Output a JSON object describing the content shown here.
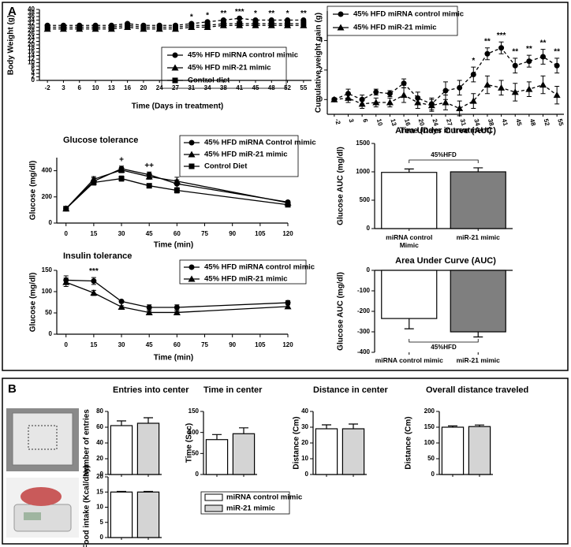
{
  "panel_labels": [
    "A",
    "B"
  ],
  "legend_b": [
    {
      "name": "miRNA control mimic",
      "color": "#ffffff"
    },
    {
      "name": "miR-21 mimic",
      "color": "#d4d4d4"
    }
  ],
  "chart_data": [
    {
      "type": "line",
      "ylabel": "Body Weight (g)",
      "xlabel": "Time (Days in treatment)",
      "line_style": "dashed",
      "categories": [
        "-2",
        "3",
        "6",
        "10",
        "13",
        "16",
        "20",
        "24",
        "27",
        "31",
        "34",
        "38",
        "41",
        "45",
        "48",
        "52",
        "55"
      ],
      "ylim": [
        0,
        40
      ],
      "yticks": [
        0,
        2,
        4,
        6,
        8,
        10,
        12,
        14,
        16,
        18,
        20,
        22,
        24,
        26,
        28,
        30,
        32,
        34,
        36,
        38,
        40
      ],
      "series": [
        {
          "name": "45% HFD miRNA control mimic",
          "color": "#000000",
          "marker": "circle",
          "values": [
            31,
            31,
            31,
            31,
            31,
            32,
            31,
            31,
            31,
            32,
            33,
            34,
            35,
            34,
            34,
            34,
            34
          ]
        },
        {
          "name": "45% HFD miR-21 mimic",
          "color": "#000000",
          "marker": "triangle",
          "values": [
            29,
            29,
            29,
            29,
            29,
            30,
            29,
            29,
            29,
            30,
            30,
            31,
            31,
            31,
            31,
            31,
            31
          ]
        },
        {
          "name": "Control diet",
          "color": "#000000",
          "marker": "square",
          "values": [
            30,
            30,
            30,
            30,
            30,
            31,
            30,
            30,
            30,
            31,
            31,
            32,
            32,
            32,
            32,
            32,
            32
          ]
        }
      ],
      "annotations": [
        null,
        null,
        null,
        null,
        null,
        null,
        null,
        null,
        null,
        "*",
        "*",
        "**",
        "***",
        "*",
        "**",
        "*",
        "**"
      ]
    },
    {
      "type": "line",
      "ylabel": "Cumulative weight gain (g)",
      "xlabel": "Time (Days in treatment)",
      "line_style": "dashed",
      "categories": [
        "-2",
        "3",
        "6",
        "10",
        "13",
        "16",
        "20",
        "24",
        "27",
        "31",
        "34",
        "38",
        "41",
        "45",
        "48",
        "52",
        "55"
      ],
      "ylim": [
        -1,
        6
      ],
      "yticks": [
        0,
        2,
        4
      ],
      "series": [
        {
          "name": "45% HFD miRNA control mimic",
          "color": "#000000",
          "marker": "circle",
          "values": [
            0,
            0.4,
            0,
            0.5,
            0.4,
            1.1,
            0.1,
            -0.3,
            0.6,
            0.8,
            1.7,
            3.1,
            3.5,
            2.3,
            2.6,
            2.9,
            2.3
          ],
          "errors": [
            0.1,
            0.3,
            0.3,
            0.2,
            0.2,
            0.3,
            0.4,
            0.4,
            0.6,
            0.5,
            0.5,
            0.4,
            0.4,
            0.5,
            0.4,
            0.5,
            0.5
          ]
        },
        {
          "name": "45% HFD miR-21 mimic",
          "color": "#000000",
          "marker": "triangle",
          "values": [
            0,
            0.1,
            -0.3,
            -0.2,
            -0.2,
            0.3,
            -0.2,
            -0.4,
            -0.2,
            -0.6,
            -0.1,
            1.0,
            0.8,
            0.5,
            0.7,
            1.0,
            0.3
          ],
          "errors": [
            0.1,
            0.3,
            0.3,
            0.3,
            0.3,
            0.5,
            0.4,
            0.4,
            0.5,
            0.5,
            0.5,
            0.6,
            0.5,
            0.6,
            0.5,
            0.6,
            0.6
          ]
        }
      ],
      "annotations": [
        null,
        null,
        null,
        null,
        null,
        null,
        null,
        null,
        null,
        null,
        "*",
        "**",
        "***",
        "**",
        "**",
        "**",
        "**"
      ]
    },
    {
      "type": "line",
      "title": "Glucose tolerance",
      "ylabel": "Glucose (mg/dl)",
      "xlabel": "Time (min)",
      "line_style": "solid",
      "x": [
        0,
        15,
        30,
        45,
        60,
        120
      ],
      "xlim": [
        -5,
        120
      ],
      "xticks": [
        0,
        15,
        30,
        45,
        60,
        75,
        90,
        105,
        120
      ],
      "ylim": [
        0,
        500
      ],
      "yticks": [
        0,
        200,
        400
      ],
      "series": [
        {
          "name": "45% HFD miRNA Control mimic",
          "color": "#000000",
          "marker": "circle",
          "values": [
            110,
            320,
            415,
            370,
            300,
            160
          ],
          "errors": [
            10,
            25,
            20,
            20,
            30,
            10
          ]
        },
        {
          "name": "45% HFD miR-21 mimic",
          "color": "#000000",
          "marker": "triangle",
          "values": [
            110,
            335,
            405,
            355,
            320,
            155
          ],
          "errors": [
            10,
            20,
            20,
            20,
            30,
            10
          ]
        },
        {
          "name": "Control Diet",
          "color": "#000000",
          "marker": "square",
          "values": [
            110,
            310,
            340,
            285,
            250,
            140
          ],
          "errors": [
            10,
            20,
            20,
            15,
            20,
            10
          ]
        }
      ],
      "annotations": [
        null,
        null,
        "+",
        "++",
        null,
        null
      ]
    },
    {
      "type": "bar",
      "title": "Area Under Curve (AUC)",
      "ylabel": "Glucose AUC (mg/dl)",
      "categories": [
        "miRNA control\nMimic",
        "miR-21 mimic"
      ],
      "values": [
        990,
        1000
      ],
      "errors": [
        60,
        70
      ],
      "colors": [
        "#ffffff",
        "#7f7f7f"
      ],
      "ylim": [
        0,
        1500
      ],
      "yticks": [
        0,
        500,
        1000,
        1500
      ],
      "bracket_label": "45%HFD"
    },
    {
      "type": "line",
      "title": "Insulin tolerance",
      "ylabel": "Glucose (mg/dl)",
      "xlabel": "Time (min)",
      "line_style": "solid",
      "x": [
        0,
        15,
        30,
        45,
        60,
        120
      ],
      "xlim": [
        -5,
        120
      ],
      "xticks": [
        0,
        15,
        30,
        45,
        60,
        75,
        90,
        105,
        120
      ],
      "ylim": [
        0,
        150
      ],
      "yticks": [
        0,
        50,
        100,
        150
      ],
      "series": [
        {
          "name": "45% HFD miRNA control mimic",
          "color": "#000000",
          "marker": "circle",
          "values": [
            127,
            125,
            77,
            63,
            63,
            74
          ],
          "errors": [
            10,
            8,
            3,
            6,
            6,
            5
          ]
        },
        {
          "name": "45% HFD miR-21 mimic",
          "color": "#000000",
          "marker": "triangle",
          "values": [
            122,
            97,
            64,
            51,
            51,
            65
          ],
          "errors": [
            10,
            6,
            3,
            3,
            3,
            4
          ]
        }
      ],
      "annotations": [
        null,
        "***",
        null,
        null,
        null,
        null
      ]
    },
    {
      "type": "bar",
      "title": "Area Under Curve (AUC)",
      "ylabel": "Glucose AUC (mg/dl)",
      "categories": [
        "miRNA control mimic",
        "miR-21 mimic"
      ],
      "values": [
        -235,
        -300
      ],
      "errors": [
        50,
        25
      ],
      "colors": [
        "#ffffff",
        "#7f7f7f"
      ],
      "ylim": [
        -400,
        0
      ],
      "yticks": [
        -400,
        -300,
        -200,
        -100,
        0
      ],
      "bracket_label": "45%HFD"
    },
    {
      "type": "bar",
      "title": "Entries into center",
      "ylabel": "Number of entries",
      "values": [
        62,
        65
      ],
      "errors": [
        6,
        7
      ],
      "colors": [
        "#ffffff",
        "#d4d4d4"
      ],
      "ylim": [
        0,
        80
      ],
      "yticks": [
        0,
        20,
        40,
        60,
        80
      ]
    },
    {
      "type": "bar",
      "title": "Time in center",
      "ylabel": "Time (Sec)",
      "values": [
        83,
        97
      ],
      "errors": [
        12,
        14
      ],
      "colors": [
        "#ffffff",
        "#d4d4d4"
      ],
      "ylim": [
        0,
        150
      ],
      "yticks": [
        0,
        50,
        100,
        150
      ]
    },
    {
      "type": "bar",
      "title": "Distance in center",
      "ylabel": "Distance (Cm)",
      "values": [
        29,
        29
      ],
      "errors": [
        2.5,
        3
      ],
      "colors": [
        "#ffffff",
        "#d4d4d4"
      ],
      "ylim": [
        0,
        40
      ],
      "yticks": [
        0,
        10,
        20,
        30,
        40
      ]
    },
    {
      "type": "bar",
      "title": "Overall distance traveled",
      "ylabel": "Distance (Cm)",
      "values": [
        150,
        152
      ],
      "errors": [
        4,
        5
      ],
      "colors": [
        "#ffffff",
        "#d4d4d4"
      ],
      "ylim": [
        0,
        200
      ],
      "yticks": [
        0,
        50,
        100,
        150,
        200
      ]
    },
    {
      "type": "bar",
      "ylabel": "Food intake (Kcal/day)",
      "values": [
        15,
        15
      ],
      "errors": [
        0.2,
        0.2
      ],
      "colors": [
        "#ffffff",
        "#d4d4d4"
      ],
      "ylim": [
        0,
        20
      ],
      "yticks": [
        0,
        5,
        10,
        15,
        20
      ]
    }
  ]
}
